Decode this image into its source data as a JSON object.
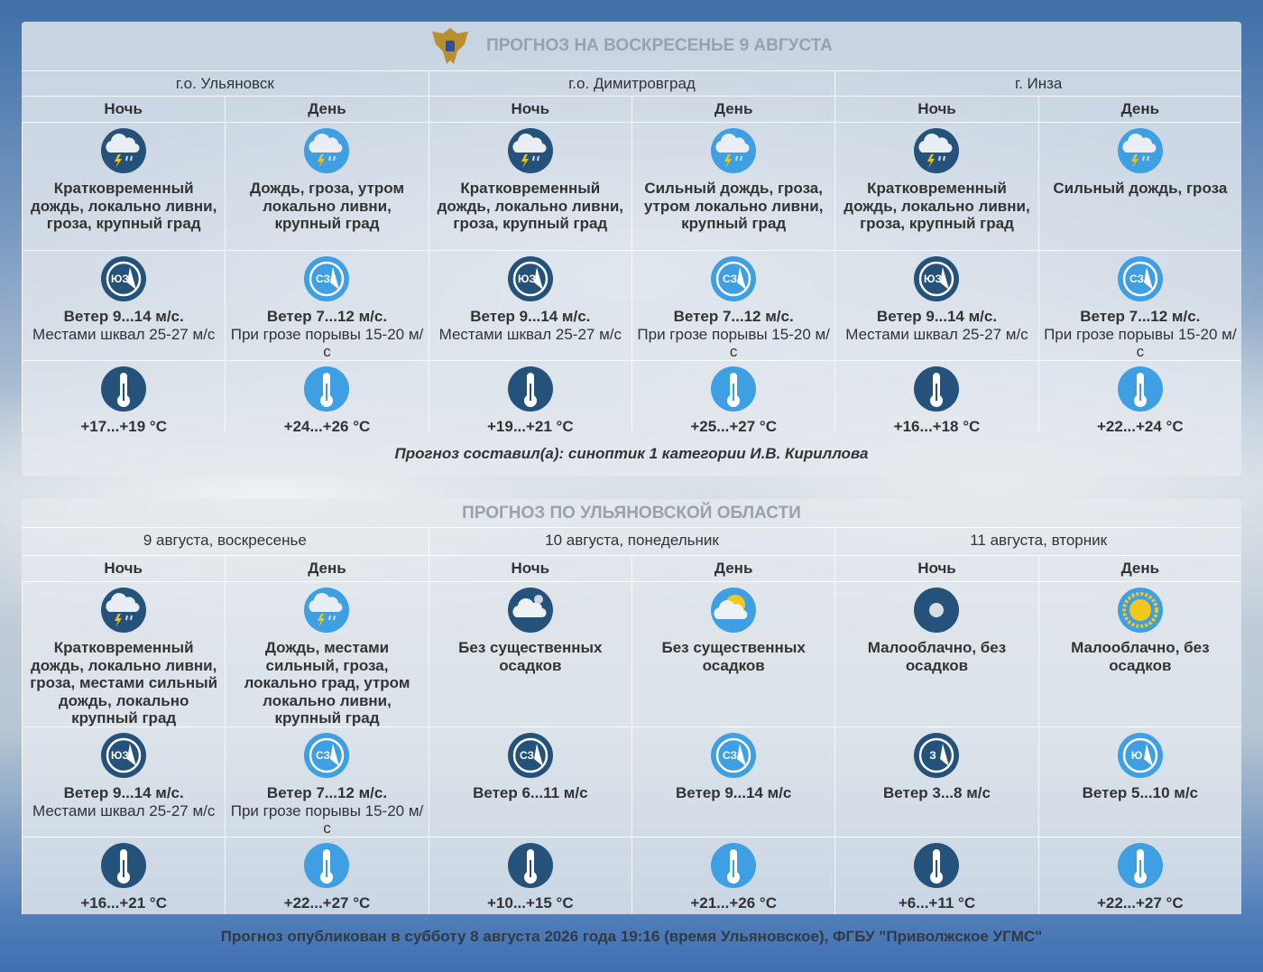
{
  "forecast": {
    "title": "ПРОГНОЗ НА ВОСКРЕСЕНЬЕ 9 АВГУСТА",
    "locations": [
      {
        "name": "г.о. Ульяновск",
        "periods": [
          {
            "label": "Ночь",
            "icon": "storm",
            "description": "Кратковременный дождь, локально ливни, гроза, крупный град",
            "wind_dir": "ЮЗ",
            "wind": "Ветер 9...14 м/с.",
            "wind_note": "Местами шквал 25-27 м/с",
            "temperature": "+17...+19 °C"
          },
          {
            "label": "День",
            "icon": "storm",
            "description": "Дождь, гроза, утром локально ливни, крупный град",
            "wind_dir": "СЗ",
            "wind": "Ветер 7...12 м/с.",
            "wind_note": "При грозе порывы 15-20 м/с",
            "temperature": "+24...+26 °C"
          }
        ]
      },
      {
        "name": "г.о. Димитровград",
        "periods": [
          {
            "label": "Ночь",
            "icon": "storm",
            "description": "Кратковременный дождь, локально ливни, гроза, крупный град",
            "wind_dir": "ЮЗ",
            "wind": "Ветер 9...14 м/с.",
            "wind_note": "Местами шквал 25-27 м/с",
            "temperature": "+19...+21 °C"
          },
          {
            "label": "День",
            "icon": "storm",
            "description": "Сильный дождь, гроза, утром локально ливни, крупный град",
            "wind_dir": "СЗ",
            "wind": "Ветер 7...12 м/с.",
            "wind_note": "При грозе порывы 15-20 м/с",
            "temperature": "+25...+27 °C"
          }
        ]
      },
      {
        "name": "г. Инза",
        "periods": [
          {
            "label": "Ночь",
            "icon": "storm",
            "description": "Кратковременный дождь, локально ливни, гроза, крупный град",
            "wind_dir": "ЮЗ",
            "wind": "Ветер 9...14 м/с.",
            "wind_note": "Местами шквал 25-27 м/с",
            "temperature": "+16...+18 °C"
          },
          {
            "label": "День",
            "icon": "storm",
            "description": "Сильный дождь, гроза",
            "wind_dir": "СЗ",
            "wind": "Ветер 7...12 м/с.",
            "wind_note": "При грозе порывы 15-20 м/с",
            "temperature": "+22...+24 °C"
          }
        ]
      }
    ],
    "author": "Прогноз составил(а): синоптик 1 категории И.В. Кириллова"
  },
  "region": {
    "title": "ПРОГНОЗ ПО УЛЬЯНОВСКОЙ ОБЛАСТИ",
    "locations": [
      {
        "name": "9 августа, воскресенье",
        "periods": [
          {
            "label": "Ночь",
            "icon": "storm",
            "description": "Кратковременный дождь, локально ливни, гроза, местами сильный дождь, локально крупный град",
            "wind_dir": "ЮЗ",
            "wind": "Ветер 9...14 м/с.",
            "wind_note": "Местами шквал 25-27 м/с",
            "temperature": "+16...+21 °C"
          },
          {
            "label": "День",
            "icon": "storm",
            "description": "Дождь, местами сильный, гроза, локально град, утром локально ливни, крупный град",
            "wind_dir": "СЗ",
            "wind": "Ветер 7...12 м/с.",
            "wind_note": "При грозе порывы 15-20 м/с",
            "temperature": "+22...+27 °C"
          }
        ]
      },
      {
        "name": "10 августа, понедельник",
        "periods": [
          {
            "label": "Ночь",
            "icon": "cloudy",
            "description": "Без существенных осадков",
            "wind_dir": "СЗ",
            "wind": "Ветер 6...11 м/с",
            "temperature": "+10...+15 °C"
          },
          {
            "label": "День",
            "icon": "partly-cloudy",
            "description": "Без существенных осадков",
            "wind_dir": "СЗ",
            "wind": "Ветер 9...14 м/с",
            "temperature": "+21...+26 °C"
          }
        ]
      },
      {
        "name": "11 августа, вторник",
        "periods": [
          {
            "label": "Ночь",
            "icon": "clear",
            "description": "Малооблачно, без осадков",
            "wind_dir": "З",
            "wind": "Ветер 3...8 м/с",
            "temperature": "+6...+11 °C"
          },
          {
            "label": "День",
            "icon": "clear",
            "description": "Малооблачно, без осадков",
            "wind_dir": "Ю",
            "wind": "Ветер 5...10 м/с",
            "temperature": "+22...+27 °C"
          }
        ]
      }
    ]
  },
  "published": "Прогноз опубликован в субботу 8 августа 2026 года 19:16 (время Ульяновское), ФГБУ \"Приволжское УГМС\""
}
